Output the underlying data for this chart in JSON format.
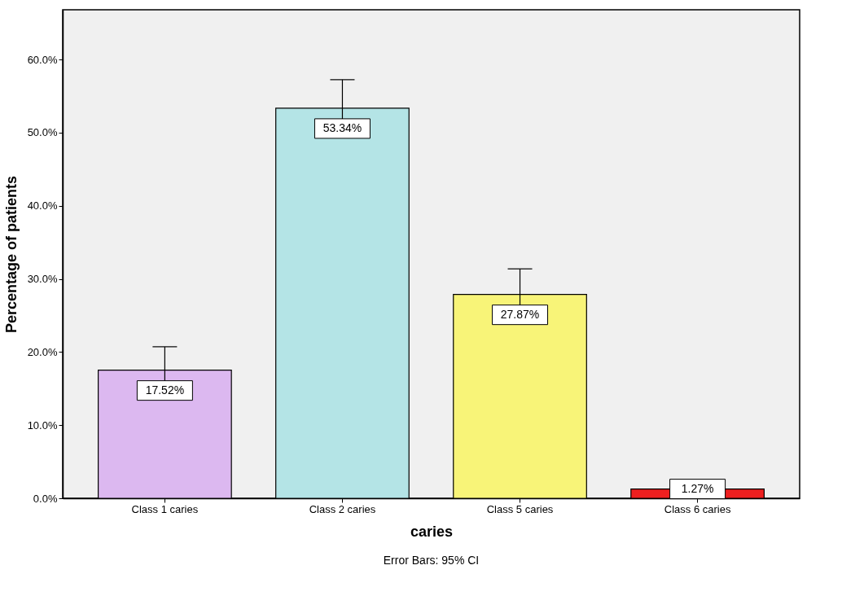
{
  "chart_data": {
    "type": "bar",
    "xlabel": "caries",
    "ylabel": "Percentage of patients",
    "categories": [
      "Class 1 caries",
      "Class 2 caries",
      "Class 5 caries",
      "Class 6 caries"
    ],
    "values": [
      17.52,
      53.34,
      27.87,
      1.27
    ],
    "colors": [
      "#dcb8f0",
      "#b4e4e6",
      "#f8f478",
      "#ee2020"
    ],
    "value_labels": [
      "17.52%",
      "53.34%",
      "27.87%",
      "1.27%"
    ],
    "errors": [
      3.2,
      3.9,
      3.5,
      null
    ],
    "ylim": [
      0,
      66.8
    ],
    "yticks": [
      {
        "value": 0,
        "label": "0.0%"
      },
      {
        "value": 10,
        "label": "10.0%"
      },
      {
        "value": 20,
        "label": "20.0%"
      },
      {
        "value": 30,
        "label": "30.0%"
      },
      {
        "value": 40,
        "label": "40.0%"
      },
      {
        "value": 50,
        "label": "50.0%"
      },
      {
        "value": 60,
        "label": "60.0%"
      }
    ],
    "grid": false,
    "legend": false,
    "annotations": [
      "Error Bars: 95% CI"
    ]
  }
}
